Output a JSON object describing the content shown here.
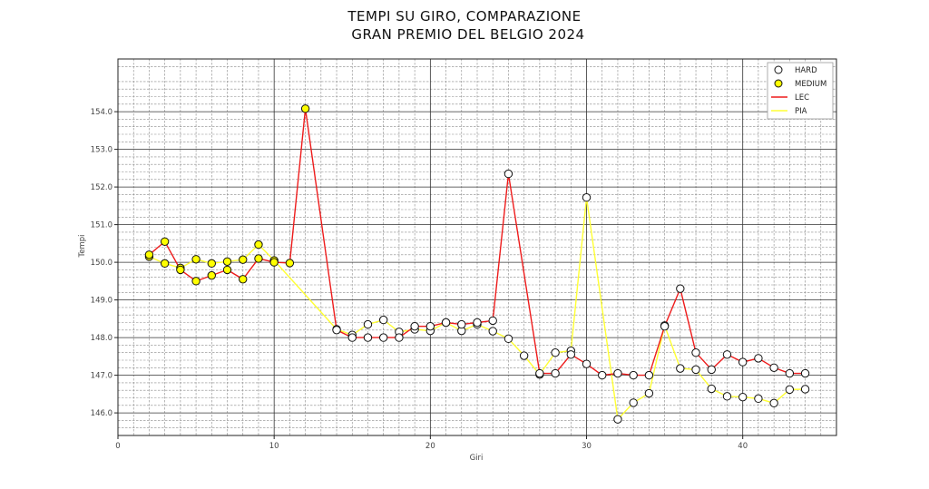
{
  "chart_data": {
    "type": "line",
    "title_line1": "TEMPI SU GIRO, COMPARAZIONE",
    "title_line2": "GRAN PREMIO DEL BELGIO 2024",
    "xlabel": "Giri",
    "ylabel": "Tempi",
    "xlim": [
      0,
      46
    ],
    "ylim": [
      145.4,
      155.4
    ],
    "x_ticks": [
      0,
      10,
      20,
      30,
      40
    ],
    "x_tick_labels": [
      "0",
      "10",
      "20",
      "30",
      "40"
    ],
    "y_ticks": [
      146,
      147,
      148,
      149,
      150,
      151,
      152,
      153,
      154
    ],
    "y_tick_labels": [
      "146.0",
      "147.0",
      "148.0",
      "149.0",
      "150.0",
      "151.0",
      "152.0",
      "153.0",
      "154.0"
    ],
    "grid": true,
    "legend_position": "top-right",
    "legend": [
      {
        "label": "HARD",
        "kind": "marker",
        "fill": "#ffffff"
      },
      {
        "label": "MEDIUM",
        "kind": "marker",
        "fill": "#ffff00"
      },
      {
        "label": "LEC",
        "kind": "line",
        "color": "#ee1c1c"
      },
      {
        "label": "PIA",
        "kind": "line",
        "color": "#ffff33"
      }
    ],
    "series": [
      {
        "name": "LEC",
        "color": "#ee1c1c",
        "x": [
          2,
          3,
          4,
          5,
          6,
          7,
          8,
          9,
          10,
          11,
          12,
          14,
          15,
          16,
          17,
          18,
          19,
          20,
          21,
          22,
          23,
          24,
          25,
          27,
          28,
          29,
          30,
          31,
          32,
          33,
          34,
          35,
          36,
          37,
          38,
          39,
          40,
          41,
          42,
          43,
          44
        ],
        "y": [
          150.2,
          150.55,
          149.8,
          149.5,
          149.65,
          149.8,
          149.55,
          150.1,
          150.0,
          149.98,
          154.08,
          148.2,
          148.0,
          148.0,
          148.0,
          148.0,
          148.3,
          148.3,
          148.4,
          148.35,
          148.4,
          148.45,
          152.35,
          147.05,
          147.05,
          147.55,
          147.3,
          147.0,
          147.05,
          147.0,
          147.0,
          148.3,
          149.3,
          147.6,
          147.15,
          147.55,
          147.35,
          147.45,
          147.2,
          147.05,
          147.05
        ],
        "compound": [
          "MEDIUM",
          "MEDIUM",
          "MEDIUM",
          "MEDIUM",
          "MEDIUM",
          "MEDIUM",
          "MEDIUM",
          "MEDIUM",
          "MEDIUM",
          "MEDIUM",
          "MEDIUM",
          "HARD",
          "HARD",
          "HARD",
          "HARD",
          "HARD",
          "HARD",
          "HARD",
          "HARD",
          "HARD",
          "HARD",
          "HARD",
          "HARD",
          "HARD",
          "HARD",
          "HARD",
          "HARD",
          "HARD",
          "HARD",
          "HARD",
          "HARD",
          "HARD",
          "HARD",
          "HARD",
          "HARD",
          "HARD",
          "HARD",
          "HARD",
          "HARD",
          "HARD",
          "HARD"
        ]
      },
      {
        "name": "PIA",
        "color": "#ffff33",
        "x": [
          2,
          3,
          4,
          5,
          6,
          7,
          8,
          9,
          10,
          14,
          15,
          16,
          17,
          18,
          19,
          20,
          21,
          22,
          23,
          24,
          25,
          26,
          27,
          28,
          29,
          30,
          32,
          33,
          34,
          35,
          36,
          37,
          38,
          39,
          40,
          41,
          42,
          43,
          44
        ],
        "y": [
          150.15,
          149.97,
          149.85,
          150.08,
          149.97,
          150.02,
          150.07,
          150.47,
          150.05,
          148.22,
          148.07,
          148.35,
          148.47,
          148.15,
          148.22,
          148.18,
          148.4,
          148.18,
          148.35,
          148.17,
          147.97,
          147.52,
          147.02,
          147.6,
          147.65,
          151.72,
          145.83,
          146.27,
          146.52,
          148.32,
          147.18,
          147.15,
          146.64,
          146.44,
          146.42,
          146.38,
          146.26,
          146.62,
          146.63
        ],
        "compound": [
          "MEDIUM",
          "MEDIUM",
          "MEDIUM",
          "MEDIUM",
          "MEDIUM",
          "MEDIUM",
          "MEDIUM",
          "MEDIUM",
          "MEDIUM",
          "HARD",
          "HARD",
          "HARD",
          "HARD",
          "HARD",
          "HARD",
          "HARD",
          "HARD",
          "HARD",
          "HARD",
          "HARD",
          "HARD",
          "HARD",
          "HARD",
          "HARD",
          "HARD",
          "HARD",
          "HARD",
          "HARD",
          "HARD",
          "HARD",
          "HARD",
          "HARD",
          "HARD",
          "HARD",
          "HARD",
          "HARD",
          "HARD",
          "HARD",
          "HARD"
        ]
      }
    ]
  }
}
